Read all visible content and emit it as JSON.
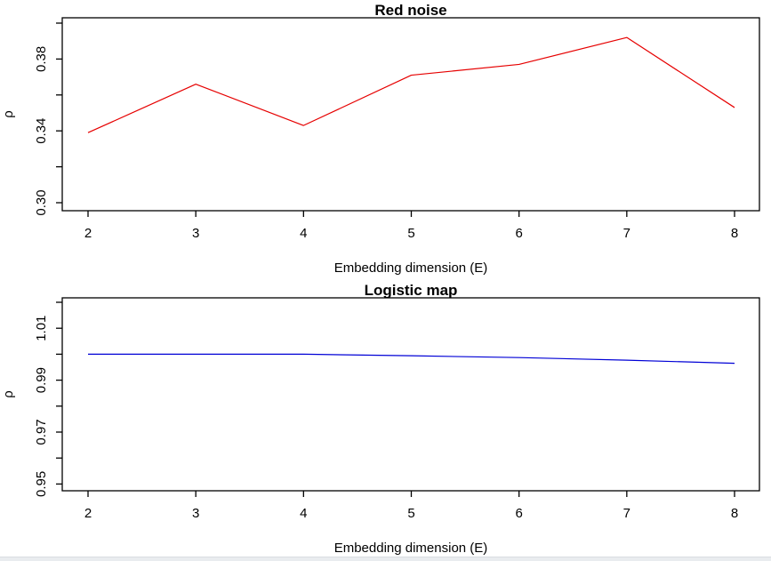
{
  "page": {
    "background": "#ffffff",
    "footer_strip_color": "#e9ecef"
  },
  "chart_data": [
    {
      "type": "line",
      "title": "Red noise",
      "xlabel": "Embedding dimension (E)",
      "ylabel": "ρ",
      "series_color": "#e60000",
      "line_width": 1.2,
      "x": [
        2,
        3,
        4,
        5,
        6,
        7,
        8
      ],
      "values": [
        0.339,
        0.366,
        0.343,
        0.371,
        0.377,
        0.392,
        0.353
      ],
      "xlim": [
        2,
        8
      ],
      "ylim": [
        0.3,
        0.4
      ],
      "grid": false,
      "legend": null,
      "xticks": [
        {
          "v": 2,
          "label": "2"
        },
        {
          "v": 3,
          "label": "3"
        },
        {
          "v": 4,
          "label": "4"
        },
        {
          "v": 5,
          "label": "5"
        },
        {
          "v": 6,
          "label": "6"
        },
        {
          "v": 7,
          "label": "7"
        },
        {
          "v": 8,
          "label": "8"
        }
      ],
      "yticks": [
        {
          "v": 0.3,
          "label": "0.30"
        },
        {
          "v": 0.32,
          "label": ""
        },
        {
          "v": 0.34,
          "label": "0.34"
        },
        {
          "v": 0.36,
          "label": ""
        },
        {
          "v": 0.38,
          "label": "0.38"
        },
        {
          "v": 0.4,
          "label": ""
        }
      ]
    },
    {
      "type": "line",
      "title": "Logistic map",
      "xlabel": "Embedding dimension (E)",
      "ylabel": "ρ",
      "series_color": "#0000d6",
      "line_width": 1.2,
      "x": [
        2,
        3,
        4,
        5,
        6,
        7,
        8
      ],
      "values": [
        1.0,
        1.0,
        1.0,
        0.9994,
        0.9987,
        0.9977,
        0.9965
      ],
      "xlim": [
        2,
        8
      ],
      "ylim": [
        0.95,
        1.02
      ],
      "grid": false,
      "legend": null,
      "xticks": [
        {
          "v": 2,
          "label": "2"
        },
        {
          "v": 3,
          "label": "3"
        },
        {
          "v": 4,
          "label": "4"
        },
        {
          "v": 5,
          "label": "5"
        },
        {
          "v": 6,
          "label": "6"
        },
        {
          "v": 7,
          "label": "7"
        },
        {
          "v": 8,
          "label": "8"
        }
      ],
      "yticks": [
        {
          "v": 0.95,
          "label": "0.95"
        },
        {
          "v": 0.96,
          "label": ""
        },
        {
          "v": 0.97,
          "label": "0.97"
        },
        {
          "v": 0.98,
          "label": ""
        },
        {
          "v": 0.99,
          "label": "0.99"
        },
        {
          "v": 1.0,
          "label": ""
        },
        {
          "v": 1.01,
          "label": "1.01"
        },
        {
          "v": 1.02,
          "label": ""
        }
      ]
    }
  ]
}
